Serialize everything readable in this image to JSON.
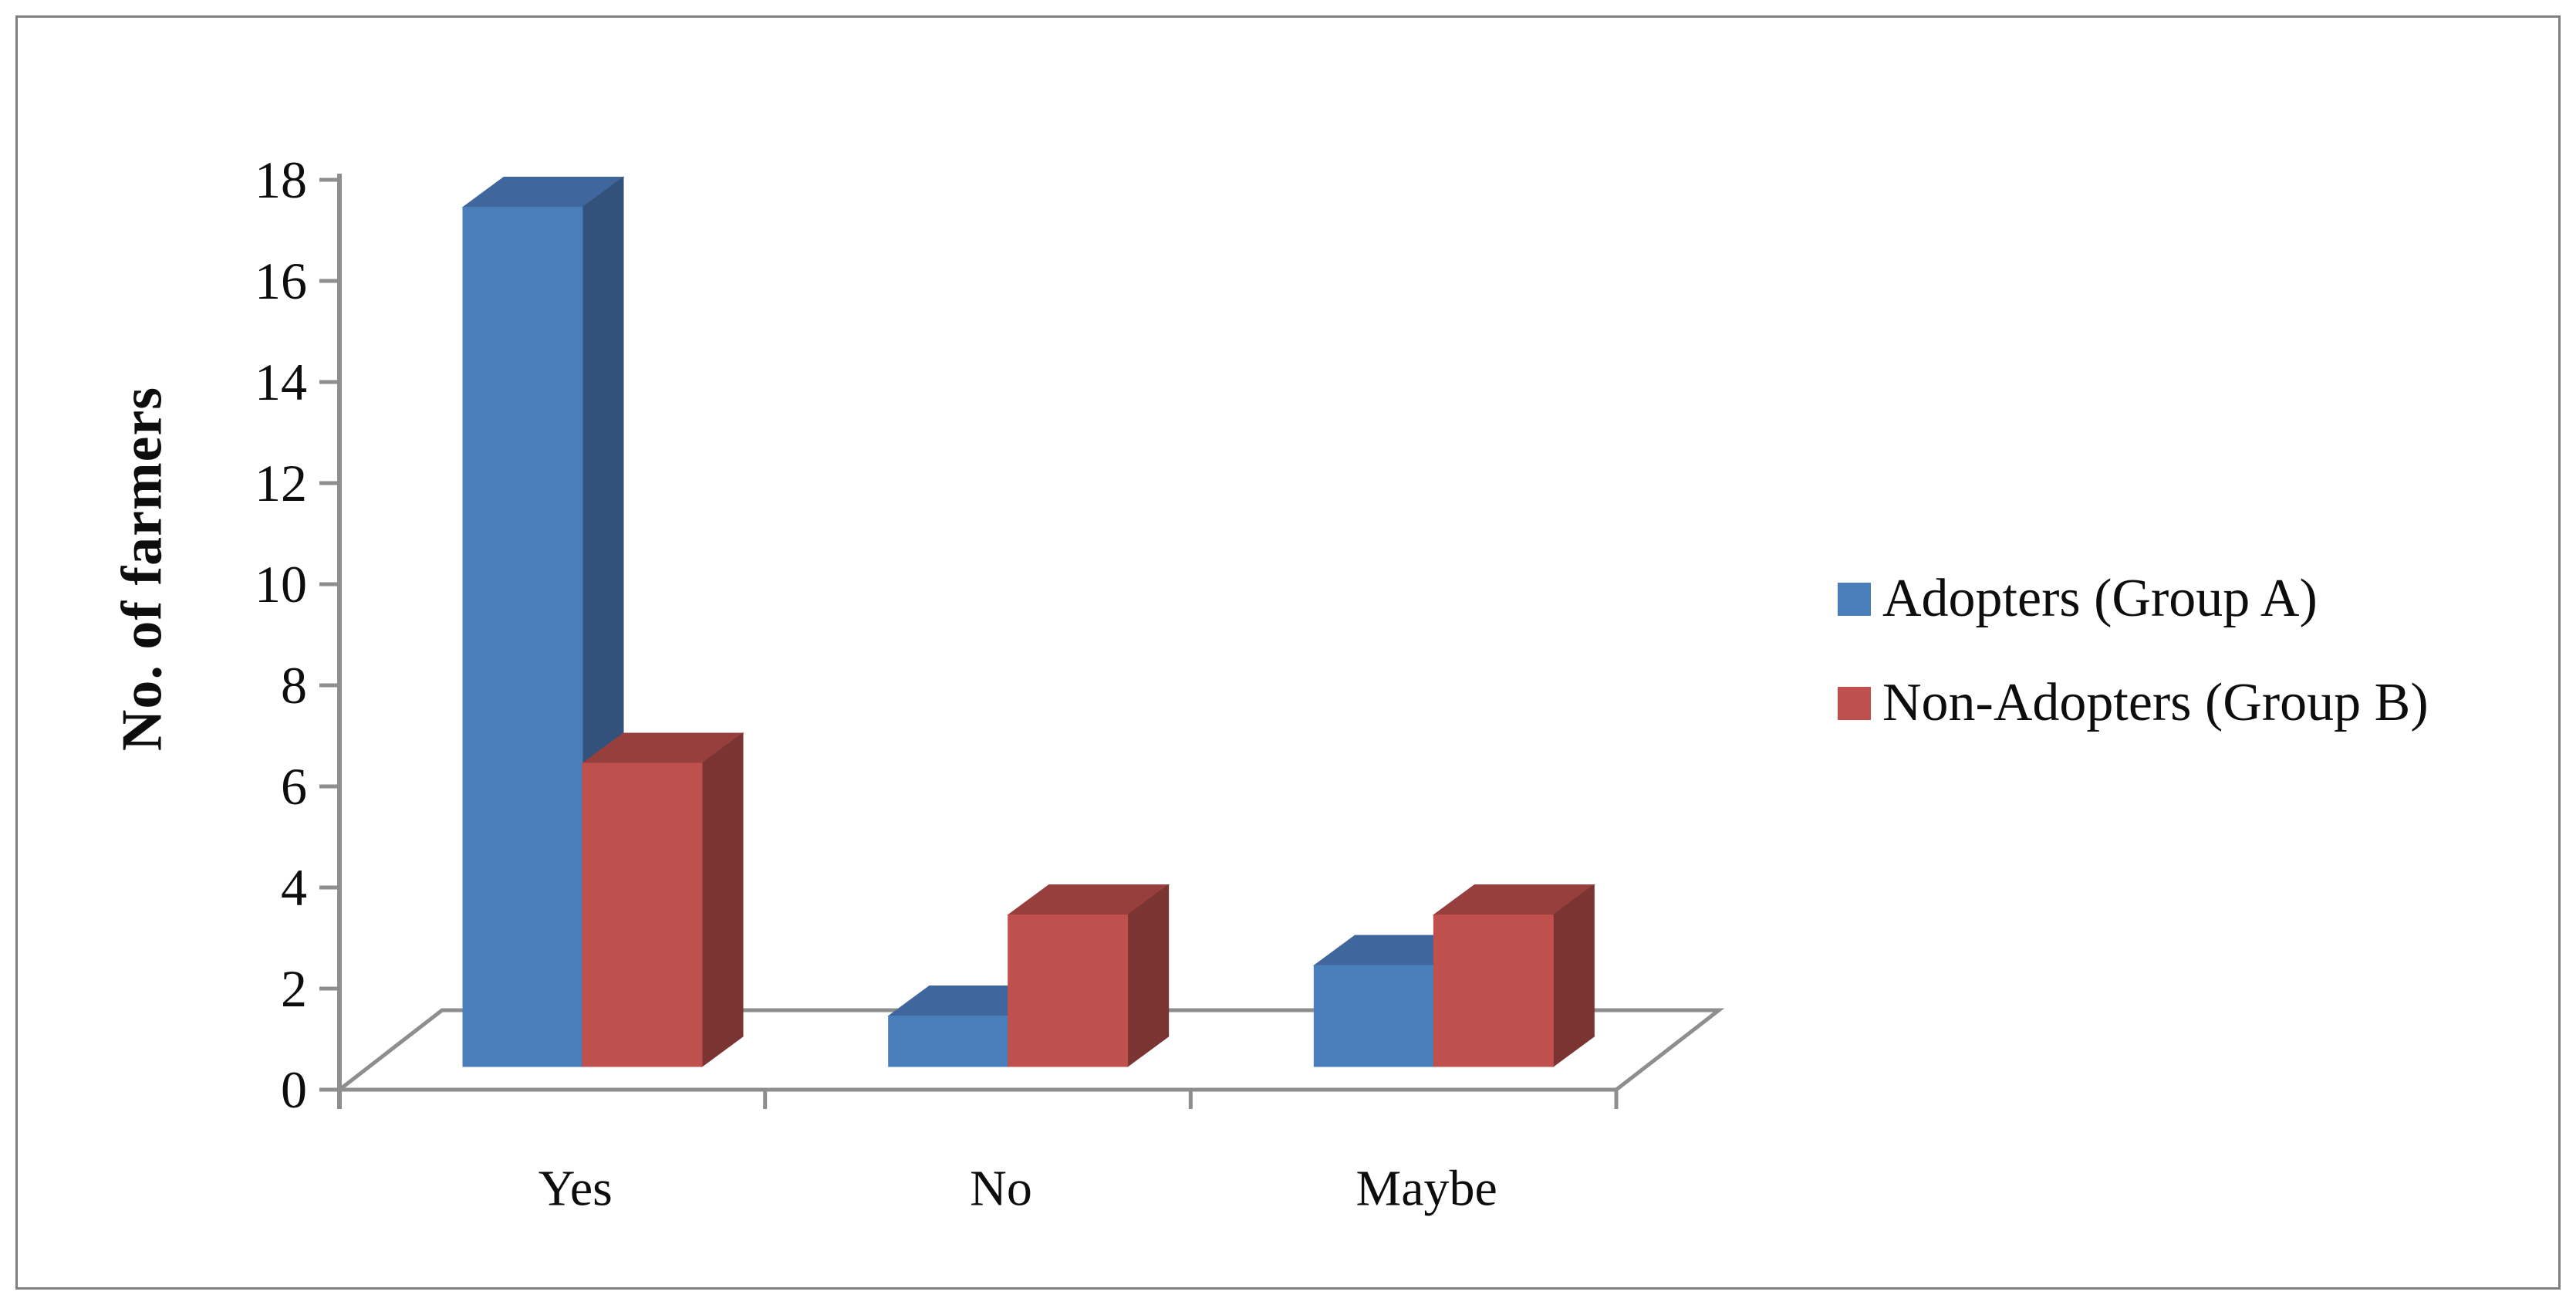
{
  "chart_data": {
    "type": "bar",
    "variant": "3d-clustered-column",
    "categories": [
      "Yes",
      "No",
      "Maybe"
    ],
    "series": [
      {
        "name": "Adopters (Group A)",
        "values": [
          17,
          1,
          2
        ],
        "color_front": "#4A7EBB",
        "color_top": "#40679D",
        "color_side": "#33527B"
      },
      {
        "name": "Non-Adopters (Group B)",
        "values": [
          6,
          3,
          3
        ],
        "color_front": "#C0504D",
        "color_top": "#963F3C",
        "color_side": "#7A3432"
      }
    ],
    "title": "",
    "xlabel": "",
    "ylabel": "No. of farmers",
    "ylim": [
      0,
      18
    ],
    "ytick_step": 2,
    "y_ticks": [
      "0",
      "2",
      "4",
      "6",
      "8",
      "10",
      "12",
      "14",
      "16",
      "18"
    ],
    "grid": false,
    "legend_position": "right",
    "axis_color": "#8E8E8E",
    "border_color": "#7F7F7F",
    "background_color": "#FFFFFF"
  }
}
